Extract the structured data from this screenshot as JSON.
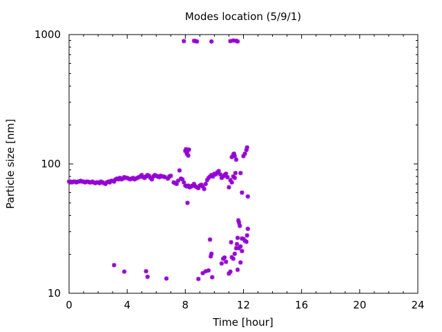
{
  "chart_data": {
    "type": "scatter",
    "title": "Modes location (5/9/1)",
    "xlabel": "Time [hour]",
    "ylabel": "Particle size [nm]",
    "xlim": [
      0,
      24
    ],
    "ylim": [
      10,
      1000
    ],
    "yscale": "log",
    "grid": false,
    "xticks": [
      0,
      4,
      8,
      12,
      16,
      20,
      24
    ],
    "xtick_labels": [
      "0",
      "4",
      "8",
      "12",
      "16",
      "20",
      "24"
    ],
    "yticks": [
      10,
      100,
      1000
    ],
    "ytick_labels": [
      "10",
      "100",
      "1000"
    ],
    "marker_color": "#9400d3",
    "marker": "asterisk",
    "points": [
      [
        0.0,
        73
      ],
      [
        0.1,
        73
      ],
      [
        0.2,
        72
      ],
      [
        0.3,
        73
      ],
      [
        0.4,
        73
      ],
      [
        0.5,
        72
      ],
      [
        0.6,
        73
      ],
      [
        0.7,
        73
      ],
      [
        0.8,
        74
      ],
      [
        0.9,
        73
      ],
      [
        1.0,
        73
      ],
      [
        1.1,
        72
      ],
      [
        1.2,
        73
      ],
      [
        1.3,
        73
      ],
      [
        1.4,
        72
      ],
      [
        1.5,
        72
      ],
      [
        1.6,
        73
      ],
      [
        1.7,
        72
      ],
      [
        1.8,
        71
      ],
      [
        1.9,
        72
      ],
      [
        2.0,
        72
      ],
      [
        2.1,
        71
      ],
      [
        2.2,
        73
      ],
      [
        2.3,
        72
      ],
      [
        2.4,
        71
      ],
      [
        2.5,
        70
      ],
      [
        2.6,
        72
      ],
      [
        2.7,
        73
      ],
      [
        2.8,
        72
      ],
      [
        2.9,
        74
      ],
      [
        3.0,
        74
      ],
      [
        3.1,
        73
      ],
      [
        3.2,
        76
      ],
      [
        3.3,
        77
      ],
      [
        3.4,
        76
      ],
      [
        3.5,
        78
      ],
      [
        3.6,
        76
      ],
      [
        3.7,
        77
      ],
      [
        3.8,
        79
      ],
      [
        3.9,
        78
      ],
      [
        4.0,
        78
      ],
      [
        4.1,
        77
      ],
      [
        4.2,
        76
      ],
      [
        4.3,
        77
      ],
      [
        4.4,
        78
      ],
      [
        4.5,
        76
      ],
      [
        4.6,
        77
      ],
      [
        4.7,
        78
      ],
      [
        4.8,
        79
      ],
      [
        4.9,
        80
      ],
      [
        5.0,
        82
      ],
      [
        5.1,
        79
      ],
      [
        5.2,
        78
      ],
      [
        5.3,
        80
      ],
      [
        5.4,
        82
      ],
      [
        5.5,
        81
      ],
      [
        5.6,
        78
      ],
      [
        5.7,
        76
      ],
      [
        5.8,
        80
      ],
      [
        5.9,
        82
      ],
      [
        6.0,
        81
      ],
      [
        6.1,
        80
      ],
      [
        6.2,
        79
      ],
      [
        6.3,
        81
      ],
      [
        6.4,
        80
      ],
      [
        6.5,
        80
      ],
      [
        6.6,
        79
      ],
      [
        6.8,
        77
      ],
      [
        6.9,
        80
      ],
      [
        7.0,
        81
      ],
      [
        7.2,
        72
      ],
      [
        7.3,
        71
      ],
      [
        7.4,
        70
      ],
      [
        7.5,
        74
      ],
      [
        7.6,
        89
      ],
      [
        7.7,
        77
      ],
      [
        7.8,
        76
      ],
      [
        7.9,
        72
      ],
      [
        8.0,
        126
      ],
      [
        8.05,
        130
      ],
      [
        8.1,
        120
      ],
      [
        8.15,
        125
      ],
      [
        8.2,
        116
      ],
      [
        8.25,
        129
      ],
      [
        8.0,
        68
      ],
      [
        8.1,
        67
      ],
      [
        8.2,
        68
      ],
      [
        8.3,
        66
      ],
      [
        8.4,
        67
      ],
      [
        8.5,
        68
      ],
      [
        8.6,
        70
      ],
      [
        8.7,
        67
      ],
      [
        8.8,
        66
      ],
      [
        8.9,
        65
      ],
      [
        9.0,
        68
      ],
      [
        9.1,
        69
      ],
      [
        9.2,
        67
      ],
      [
        9.3,
        64
      ],
      [
        9.4,
        70
      ],
      [
        9.5,
        75
      ],
      [
        9.6,
        78
      ],
      [
        9.7,
        80
      ],
      [
        9.8,
        82
      ],
      [
        9.9,
        80
      ],
      [
        10.0,
        84
      ],
      [
        10.1,
        83
      ],
      [
        10.2,
        86
      ],
      [
        10.3,
        88
      ],
      [
        10.4,
        83
      ],
      [
        10.5,
        78
      ],
      [
        10.6,
        80
      ],
      [
        10.7,
        82
      ],
      [
        10.8,
        84
      ],
      [
        10.9,
        79
      ],
      [
        11.0,
        66
      ],
      [
        11.1,
        75
      ],
      [
        11.2,
        72
      ],
      [
        11.3,
        80
      ],
      [
        11.4,
        78
      ],
      [
        11.2,
        113
      ],
      [
        11.3,
        118
      ],
      [
        11.35,
        120
      ],
      [
        11.4,
        115
      ],
      [
        11.5,
        108
      ],
      [
        11.45,
        85
      ],
      [
        11.8,
        85
      ],
      [
        11.9,
        60
      ],
      [
        12.0,
        115
      ],
      [
        12.1,
        120
      ],
      [
        12.2,
        128
      ],
      [
        12.25,
        134
      ],
      [
        12.3,
        56
      ],
      [
        8.15,
        50
      ],
      [
        7.9,
        890
      ],
      [
        8.6,
        895
      ],
      [
        8.7,
        890
      ],
      [
        8.8,
        885
      ],
      [
        9.8,
        885
      ],
      [
        11.1,
        890
      ],
      [
        11.3,
        900
      ],
      [
        11.5,
        895
      ],
      [
        11.6,
        885
      ],
      [
        3.1,
        16.5
      ],
      [
        3.8,
        14.7
      ],
      [
        5.3,
        14.8
      ],
      [
        5.4,
        13.4
      ],
      [
        6.7,
        13.0
      ],
      [
        8.9,
        12.9
      ],
      [
        9.2,
        14.3
      ],
      [
        9.4,
        14.8
      ],
      [
        9.6,
        15.0
      ],
      [
        9.75,
        19.3
      ],
      [
        9.8,
        20.2
      ],
      [
        9.7,
        26.0
      ],
      [
        9.85,
        13.3
      ],
      [
        10.5,
        17.0
      ],
      [
        10.6,
        18.5
      ],
      [
        10.7,
        18.9
      ],
      [
        10.8,
        17.5
      ],
      [
        11.0,
        14.2
      ],
      [
        11.1,
        14.7
      ],
      [
        11.15,
        24.8
      ],
      [
        11.2,
        19.0
      ],
      [
        11.3,
        18.5
      ],
      [
        11.4,
        20.2
      ],
      [
        11.5,
        22.3
      ],
      [
        11.55,
        24.0
      ],
      [
        11.6,
        15.2
      ],
      [
        11.65,
        36.6
      ],
      [
        11.7,
        35.0
      ],
      [
        11.75,
        33.2
      ],
      [
        11.8,
        17.3
      ],
      [
        11.7,
        22.3
      ],
      [
        11.8,
        23.0
      ],
      [
        11.9,
        26.5
      ],
      [
        12.0,
        26.3
      ],
      [
        12.1,
        25.5
      ],
      [
        12.2,
        25.0
      ],
      [
        12.25,
        28.0
      ],
      [
        12.3,
        31.5
      ],
      [
        11.6,
        26.8
      ],
      [
        11.9,
        21.2
      ]
    ]
  }
}
